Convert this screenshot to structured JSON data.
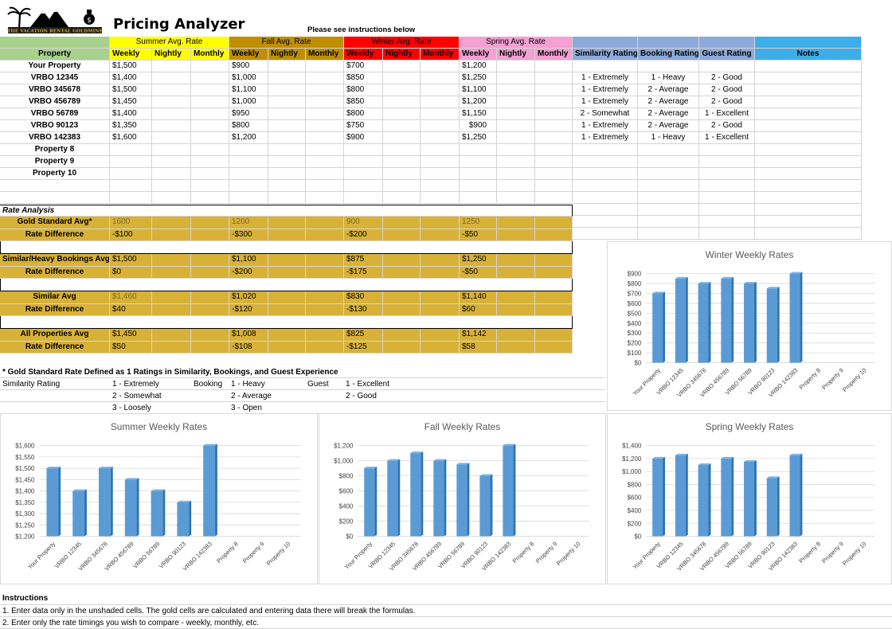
{
  "app": {
    "title": "Pricing Analyzer",
    "logo_text": "THE VACATION RENTAL GOLDMINE",
    "instructions_hint": "Please see instructions below"
  },
  "header": {
    "groups": [
      "Summer Avg. Rate",
      "Fall Avg. Rate",
      "Winter Avg. Rate",
      "Spring Avg. Rate"
    ],
    "property_label": "Property",
    "sub": [
      "Weekly",
      "Nightly",
      "Monthly"
    ],
    "ratings": [
      "Similarity Rating",
      "Booking Rating",
      "Guest Rating"
    ],
    "notes": "Notes"
  },
  "properties": [
    {
      "name": "Your Property",
      "summer": "$1,500",
      "fall": "$900",
      "winter": "$700",
      "spring": "$1,200",
      "sim": "",
      "book": "",
      "guest": ""
    },
    {
      "name": "VRBO 12345",
      "summer": "$1,400",
      "fall": "$1,000",
      "winter": "$850",
      "spring": "$1,250",
      "sim": "1 - Extremely",
      "book": "1 - Heavy",
      "guest": "2 - Good"
    },
    {
      "name": "VRBO 345678",
      "summer": "$1,500",
      "fall": "$1,100",
      "winter": "$800",
      "spring": "$1,100",
      "sim": "1 - Extremely",
      "book": "2 - Average",
      "guest": "2 - Good"
    },
    {
      "name": "VRBO 456789",
      "summer": "$1,450",
      "fall": "$1,000",
      "winter": "$850",
      "spring": "$1,200",
      "sim": "1 - Extremely",
      "book": "2 - Average",
      "guest": "2 - Good"
    },
    {
      "name": "VRBO 56789",
      "summer": "$1,400",
      "fall": "$950",
      "winter": "$800",
      "spring": "$1,150",
      "sim": "2 - Somewhat",
      "book": "2 - Average",
      "guest": "1 - Excellent"
    },
    {
      "name": "VRBO 90123",
      "summer": "$1,350",
      "fall": "$800",
      "winter": "$750",
      "spring": "$900",
      "sim": "1 - Extremely",
      "book": "2 - Average",
      "guest": "2 - Good"
    },
    {
      "name": "VRBO 142383",
      "summer": "$1,600",
      "fall": "$1,200",
      "winter": "$900",
      "spring": "$1,250",
      "sim": "1 - Extremely",
      "book": "1 - Heavy",
      "guest": "1 - Excellent"
    },
    {
      "name": "Property 8",
      "summer": "",
      "fall": "",
      "winter": "",
      "spring": "",
      "sim": "",
      "book": "",
      "guest": ""
    },
    {
      "name": "Property  9",
      "summer": "",
      "fall": "",
      "winter": "",
      "spring": "",
      "sim": "",
      "book": "",
      "guest": ""
    },
    {
      "name": "Property 10",
      "summer": "",
      "fall": "",
      "winter": "",
      "spring": "",
      "sim": "",
      "book": "",
      "guest": ""
    }
  ],
  "analysis": {
    "label": "Rate Analysis",
    "blocks": [
      {
        "name": "Gold Standard Avg*",
        "diff_label": "Rate Difference",
        "avg": [
          "1600",
          "1200",
          "900",
          "1250"
        ],
        "diff": [
          "-$100",
          "-$300",
          "-$200",
          "-$50"
        ]
      },
      {
        "name": "Similar/Heavy Bookings Avg",
        "diff_label": "Rate Difference",
        "avg": [
          "$1,500",
          "$1,100",
          "$875",
          "$1,250"
        ],
        "diff": [
          "$0",
          "-$200",
          "-$175",
          "-$50"
        ]
      },
      {
        "name": "Similar Avg",
        "diff_label": "Rate Difference",
        "avg": [
          "$1,460",
          "$1,020",
          "$830",
          "$1,140"
        ],
        "diff": [
          "$40",
          "-$120",
          "-$130",
          "$60"
        ]
      },
      {
        "name": "All Properties Avg",
        "diff_label": "Rate Difference",
        "avg": [
          "$1,450",
          "$1,008",
          "$825",
          "$1,142"
        ],
        "diff": [
          "$50",
          "-$108",
          "-$125",
          "$58"
        ]
      }
    ]
  },
  "legend": {
    "footnote": "* Gold Standard Rate Defined as 1 Ratings in Similarity, Bookings, and Guest Experience",
    "similarity_label": "Similarity Rating",
    "similarity": [
      "1 - Extremely",
      "2 - Somewhat",
      "3 - Loosely"
    ],
    "booking_label": "Booking",
    "booking": [
      "1 - Heavy",
      "2 - Average",
      "3 - Open"
    ],
    "guest_label": "Guest",
    "guest": [
      "1 - Excellent",
      "2 - Good"
    ]
  },
  "instructions": {
    "title": "Instructions",
    "lines": [
      "1. Enter data only in the unshaded cells.  The gold cells are calculated and entering data there will break the formulas.",
      "2. Enter only the rate timings you wish to compare - weekly, monthly, etc."
    ]
  },
  "colors": {
    "bar": "#5b9bd5",
    "bar_dark": "#2e75b6",
    "gold": "#d8b237"
  },
  "chart_data": [
    {
      "type": "bar",
      "title": "Winter Weekly Rates",
      "categories": [
        "Your Property",
        "VRBO 12345",
        "VRBO 345678",
        "VRBO 456789",
        "VRBO 56789",
        "VRBO 90123",
        "VRBO 142383",
        "Property 8",
        "Property  9",
        "Property 10"
      ],
      "values": [
        700,
        850,
        800,
        850,
        800,
        750,
        900,
        null,
        null,
        null
      ],
      "ylim": [
        0,
        900
      ],
      "yticks": [
        "$0",
        "$100",
        "$200",
        "$300",
        "$400",
        "$500",
        "$600",
        "$700",
        "$800",
        "$900"
      ],
      "step": 100
    },
    {
      "type": "bar",
      "title": "Summer Weekly Rates",
      "categories": [
        "Your Property",
        "VRBO 12345",
        "VRBO 345678",
        "VRBO 456789",
        "VRBO 56789",
        "VRBO 90123",
        "VRBO 142383",
        "Property 8",
        "Property  9",
        "Property 10"
      ],
      "values": [
        1500,
        1400,
        1500,
        1450,
        1400,
        1350,
        1600,
        null,
        null,
        null
      ],
      "ylim": [
        1200,
        1600
      ],
      "yticks": [
        "$1,200",
        "$1,250",
        "$1,300",
        "$1,350",
        "$1,400",
        "$1,450",
        "$1,500",
        "$1,550",
        "$1,600"
      ],
      "step": 50
    },
    {
      "type": "bar",
      "title": "Fall Weekly Rates",
      "categories": [
        "Your Property",
        "VRBO 12345",
        "VRBO 345678",
        "VRBO 456789",
        "VRBO 56789",
        "VRBO 90123",
        "VRBO 142383",
        "Property 8",
        "Property  9",
        "Property 10"
      ],
      "values": [
        900,
        1000,
        1100,
        1000,
        950,
        800,
        1200,
        null,
        null,
        null
      ],
      "ylim": [
        0,
        1200
      ],
      "yticks": [
        "$0",
        "$200",
        "$400",
        "$600",
        "$800",
        "$1,000",
        "$1,200"
      ],
      "step": 200
    },
    {
      "type": "bar",
      "title": "Spring Weekly Rates",
      "categories": [
        "Your Property",
        "VRBO 12345",
        "VRBO 345678",
        "VRBO 456789",
        "VRBO 56789",
        "VRBO 90123",
        "VRBO 142383",
        "Property 8",
        "Property  9",
        "Property 10"
      ],
      "values": [
        1200,
        1250,
        1100,
        1200,
        1150,
        900,
        1250,
        null,
        null,
        null
      ],
      "ylim": [
        0,
        1400
      ],
      "yticks": [
        "$0",
        "$200",
        "$400",
        "$600",
        "$800",
        "$1,000",
        "$1,200",
        "$1,400"
      ],
      "step": 200
    }
  ]
}
